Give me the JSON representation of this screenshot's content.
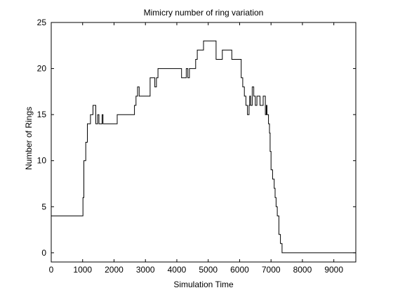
{
  "chart_data": {
    "type": "line",
    "title": "Mimicry number of ring variation",
    "xlabel": "Simulation Time",
    "ylabel": "Number of Rings",
    "xlim": [
      0,
      9700
    ],
    "ylim": [
      -1,
      25
    ],
    "xticks": [
      0,
      1000,
      2000,
      3000,
      4000,
      5000,
      6000,
      7000,
      8000,
      9000
    ],
    "yticks": [
      0,
      5,
      10,
      15,
      20,
      25
    ],
    "grid": false,
    "line_color": "#000000",
    "series": [
      {
        "step": true,
        "x": [
          0,
          1000,
          1010,
          1040,
          1070,
          1100,
          1150,
          1200,
          1250,
          1290,
          1330,
          1380,
          1420,
          1450,
          1480,
          1520,
          1560,
          1600,
          1620,
          1650,
          1700,
          1750,
          2100,
          2600,
          2650,
          2700,
          2750,
          2800,
          2850,
          3000,
          3150,
          3200,
          3300,
          3350,
          3400,
          3450,
          4000,
          4150,
          4250,
          4300,
          4350,
          4400,
          4450,
          4600,
          4650,
          4700,
          4800,
          4850,
          5000,
          5050,
          5250,
          5300,
          5450,
          5500,
          5700,
          5750,
          5950,
          6000,
          6050,
          6100,
          6150,
          6200,
          6250,
          6300,
          6320,
          6350,
          6400,
          6450,
          6500,
          6550,
          6600,
          6650,
          6700,
          6750,
          6800,
          6820,
          6850,
          6870,
          6900,
          6920,
          6950,
          6970,
          7000,
          7050,
          7100,
          7130,
          7160,
          7200,
          7250,
          7300,
          7350,
          7400,
          9700
        ],
        "y": [
          4,
          4,
          6,
          10,
          10,
          12,
          14,
          14,
          15,
          15,
          16,
          16,
          14,
          14,
          15,
          14,
          14,
          14,
          15,
          14,
          14,
          14,
          15,
          15,
          16,
          17,
          18,
          17,
          17,
          17,
          19,
          19,
          18,
          19,
          20,
          20,
          20,
          19,
          19,
          20,
          19,
          20,
          20,
          21,
          22,
          22,
          22,
          23,
          23,
          23,
          21,
          21,
          22,
          22,
          22,
          21,
          21,
          21,
          19,
          18,
          17,
          16,
          15,
          16,
          17,
          16,
          18,
          17,
          16,
          17,
          17,
          16,
          16,
          17,
          17,
          15,
          16,
          15,
          15,
          14,
          13,
          11,
          9,
          8,
          7,
          6,
          5,
          4,
          2,
          1,
          0,
          0,
          0
        ]
      }
    ]
  }
}
